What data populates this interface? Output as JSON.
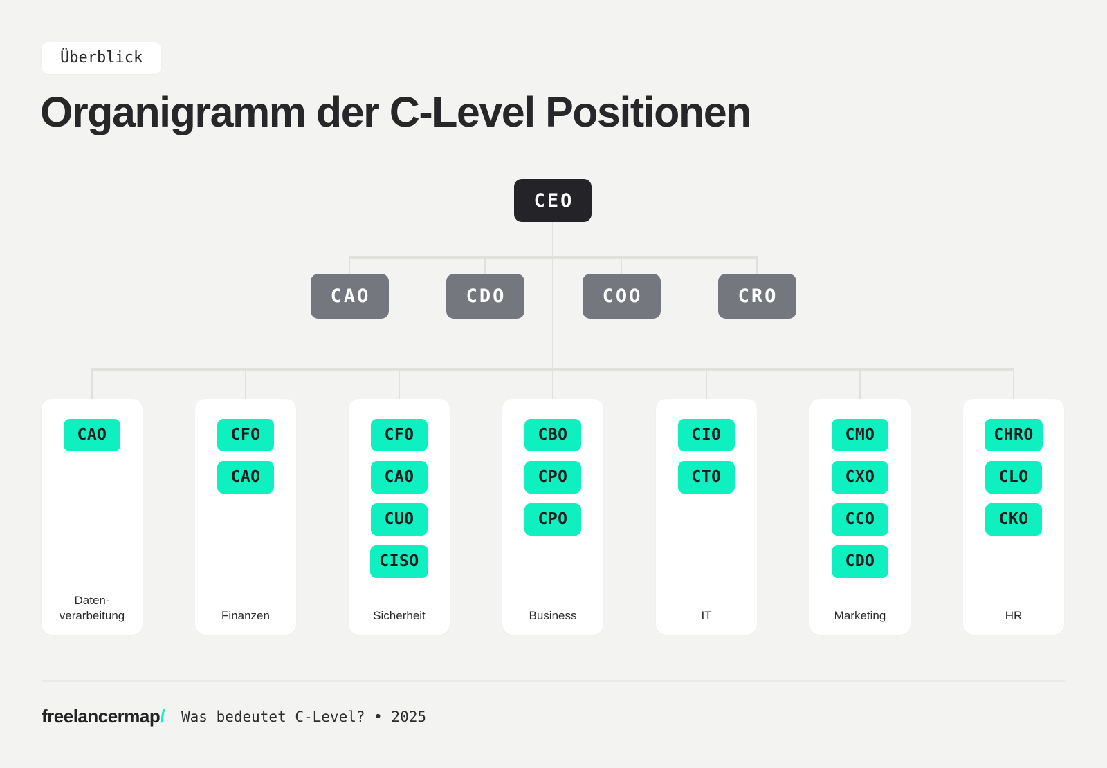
{
  "colors": {
    "background": "#f3f3f1",
    "accent_green": "#0ef0c0",
    "dark": "#242428",
    "box_gray": "#74777e",
    "connector_gray": "#e0e0dd"
  },
  "badge": {
    "label": "Überblick"
  },
  "title": "Organigramm der C-Level Positionen",
  "org": {
    "root": {
      "label": "CEO"
    },
    "level2": [
      {
        "label": "CAO"
      },
      {
        "label": "CDO"
      },
      {
        "label": "COO"
      },
      {
        "label": "CRO"
      }
    ],
    "groups": [
      {
        "label": "Daten-verarbeitung",
        "chips": [
          "CAO"
        ]
      },
      {
        "label": "Finanzen",
        "chips": [
          "CFO",
          "CAO"
        ]
      },
      {
        "label": "Sicherheit",
        "chips": [
          "CFO",
          "CAO",
          "CUO",
          "CISO"
        ]
      },
      {
        "label": "Business",
        "chips": [
          "CBO",
          "CPO",
          "CPO"
        ]
      },
      {
        "label": "IT",
        "chips": [
          "CIO",
          "CTO"
        ]
      },
      {
        "label": "Marketing",
        "chips": [
          "CMO",
          "CXO",
          "CCO",
          "CDO"
        ]
      },
      {
        "label": "HR",
        "chips": [
          "CHRO",
          "CLO",
          "CKO"
        ]
      }
    ]
  },
  "footer": {
    "logo": "freelancermap",
    "logo_slash": "/",
    "tagline": "Was bedeutet C-Level? • 2025"
  }
}
